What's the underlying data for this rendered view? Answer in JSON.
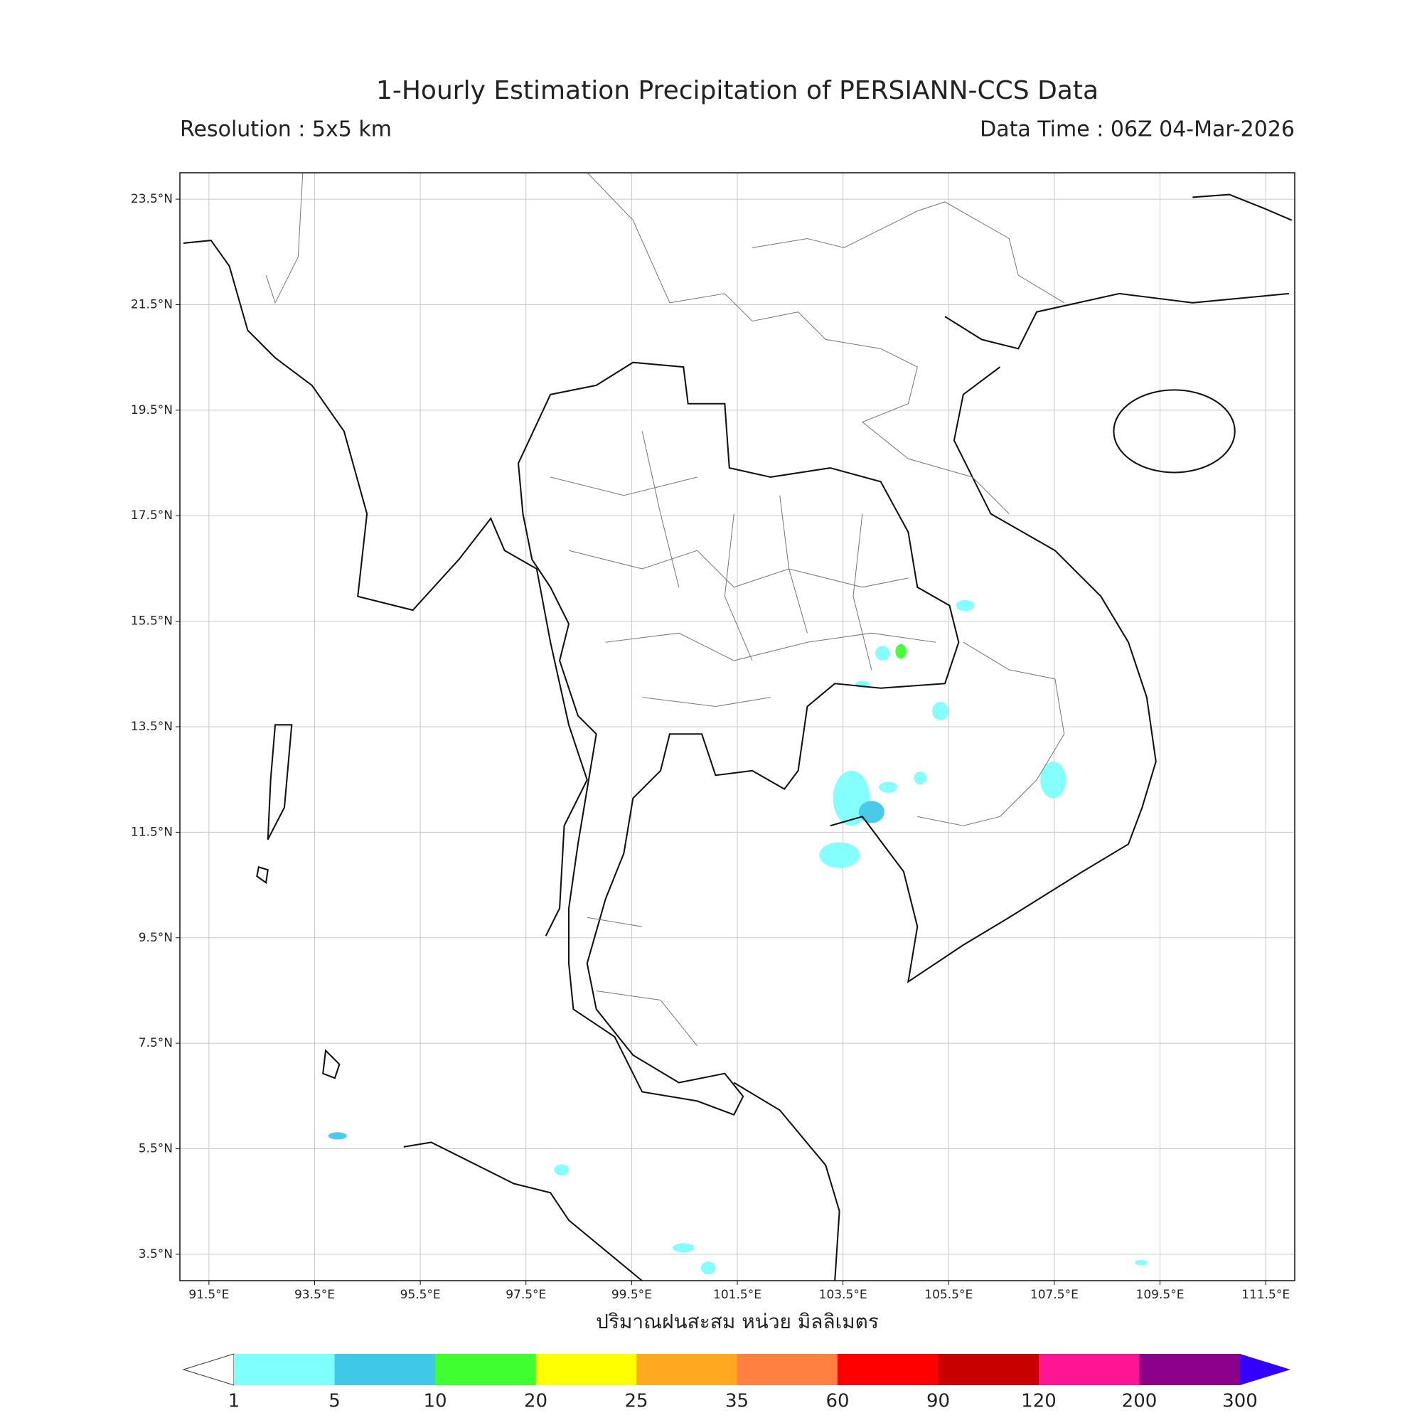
{
  "header": {
    "title": "1-Hourly Estimation Precipitation of PERSIANN-CCS Data",
    "resolution": "Resolution : 5x5 km",
    "data_time": "Data Time : 06Z 04-Mar-2026"
  },
  "map": {
    "xlim": [
      90.95,
      112.05
    ],
    "ylim": [
      3.0,
      24.0
    ],
    "grid": true,
    "xticks": [
      {
        "value": 91.5,
        "label": "91.5°E"
      },
      {
        "value": 93.5,
        "label": "93.5°E"
      },
      {
        "value": 95.5,
        "label": "95.5°E"
      },
      {
        "value": 97.5,
        "label": "97.5°E"
      },
      {
        "value": 99.5,
        "label": "99.5°E"
      },
      {
        "value": 101.5,
        "label": "101.5°E"
      },
      {
        "value": 103.5,
        "label": "103.5°E"
      },
      {
        "value": 105.5,
        "label": "105.5°E"
      },
      {
        "value": 107.5,
        "label": "107.5°E"
      },
      {
        "value": 109.5,
        "label": "109.5°E"
      },
      {
        "value": 111.5,
        "label": "111.5°E"
      }
    ],
    "yticks": [
      {
        "value": 3.5,
        "label": "3.5°N"
      },
      {
        "value": 5.5,
        "label": "5.5°N"
      },
      {
        "value": 7.5,
        "label": "7.5°N"
      },
      {
        "value": 9.5,
        "label": "9.5°N"
      },
      {
        "value": 11.5,
        "label": "11.5°N"
      },
      {
        "value": 13.5,
        "label": "13.5°N"
      },
      {
        "value": 15.5,
        "label": "15.5°N"
      },
      {
        "value": 17.5,
        "label": "17.5°N"
      },
      {
        "value": 19.5,
        "label": "19.5°N"
      },
      {
        "value": 21.5,
        "label": "21.5°N"
      },
      {
        "value": 23.5,
        "label": "23.5°N"
      }
    ],
    "xlabel": "ปริมาณฝนสะสม หน่วย มิลลิเมตร"
  },
  "colorbar": {
    "levels": [
      1,
      5,
      10,
      20,
      25,
      35,
      60,
      90,
      120,
      200,
      300
    ],
    "colors": [
      "#80ffff",
      "#40c8e8",
      "#40ff30",
      "#ffff00",
      "#ffa820",
      "#ff8040",
      "#ff0000",
      "#c80000",
      "#ff1493",
      "#8b008b"
    ],
    "under_color": "#ffffff",
    "over_color": "#3300ff"
  }
}
